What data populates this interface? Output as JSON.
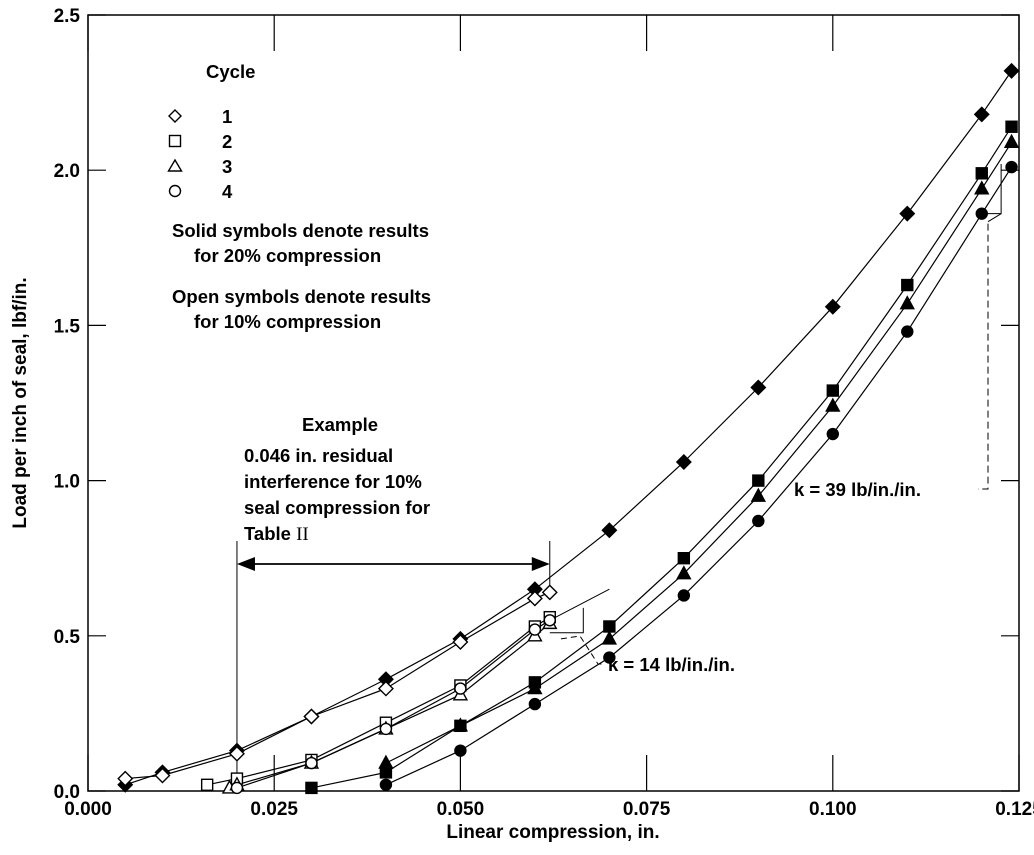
{
  "chart_data": {
    "type": "scatter",
    "xlabel": "Linear compression, in.",
    "ylabel": "Load per inch of seal, lbf/in.",
    "xlim": [
      0.0,
      0.125
    ],
    "ylim": [
      0.0,
      2.5
    ],
    "x_ticks": [
      "0.000",
      "0.025",
      "0.050",
      "0.075",
      "0.100",
      "0.125"
    ],
    "y_ticks": [
      "0.0",
      "0.5",
      "1.0",
      "1.5",
      "2.0",
      "2.5"
    ],
    "grid": false,
    "legend": {
      "title": "Cycle",
      "placement": "top-left",
      "entries": [
        {
          "label": "1",
          "marker": "diamond"
        },
        {
          "label": "2",
          "marker": "square"
        },
        {
          "label": "3",
          "marker": "triangle"
        },
        {
          "label": "4",
          "marker": "circle"
        }
      ]
    },
    "notes": [
      "Solid symbols denote results",
      "for 20% compression",
      "Open symbols denote results",
      "for 10% compression"
    ],
    "example_annotation": {
      "heading": "Example",
      "lines": [
        "0.046 in. residual",
        "interference for 10%",
        "seal compression for",
        "Table "
      ],
      "roman": "II",
      "span_x": [
        0.02,
        0.062
      ]
    },
    "stiffness_labels": [
      "k = 14 lb/in./in.",
      "k = 39 lb/in./in."
    ],
    "series": [
      {
        "cycle": "1",
        "compression": "20%",
        "marker": "diamond",
        "filled": true,
        "x": [
          0.005,
          0.01,
          0.02,
          0.03,
          0.04,
          0.05,
          0.06,
          0.07,
          0.08,
          0.09,
          0.1,
          0.11,
          0.12,
          0.124
        ],
        "y": [
          0.02,
          0.06,
          0.13,
          0.24,
          0.36,
          0.49,
          0.65,
          0.84,
          1.06,
          1.3,
          1.56,
          1.86,
          2.18,
          2.32
        ]
      },
      {
        "cycle": "2",
        "compression": "20%",
        "marker": "square",
        "filled": true,
        "x": [
          0.03,
          0.04,
          0.05,
          0.06,
          0.07,
          0.08,
          0.09,
          0.1,
          0.11,
          0.12,
          0.124
        ],
        "y": [
          0.01,
          0.06,
          0.21,
          0.35,
          0.53,
          0.75,
          1.0,
          1.29,
          1.63,
          1.99,
          2.14
        ]
      },
      {
        "cycle": "3",
        "compression": "20%",
        "marker": "triangle",
        "filled": true,
        "x": [
          0.04,
          0.05,
          0.06,
          0.07,
          0.08,
          0.09,
          0.1,
          0.11,
          0.12,
          0.124
        ],
        "y": [
          0.09,
          0.21,
          0.33,
          0.49,
          0.7,
          0.95,
          1.24,
          1.57,
          1.94,
          2.09
        ]
      },
      {
        "cycle": "4",
        "compression": "20%",
        "marker": "circle",
        "filled": true,
        "x": [
          0.04,
          0.05,
          0.06,
          0.07,
          0.08,
          0.09,
          0.1,
          0.11,
          0.12,
          0.124
        ],
        "y": [
          0.02,
          0.13,
          0.28,
          0.43,
          0.63,
          0.87,
          1.15,
          1.48,
          1.86,
          2.01
        ]
      },
      {
        "cycle": "1",
        "compression": "10%",
        "marker": "diamond",
        "filled": false,
        "x": [
          0.005,
          0.01,
          0.02,
          0.03,
          0.04,
          0.05,
          0.06,
          0.062
        ],
        "y": [
          0.04,
          0.05,
          0.12,
          0.24,
          0.33,
          0.48,
          0.62,
          0.64
        ]
      },
      {
        "cycle": "2",
        "compression": "10%",
        "marker": "square",
        "filled": false,
        "x": [
          0.016,
          0.02,
          0.03,
          0.04,
          0.05,
          0.06,
          0.062
        ],
        "y": [
          0.02,
          0.04,
          0.1,
          0.22,
          0.34,
          0.53,
          0.56
        ]
      },
      {
        "cycle": "3",
        "compression": "10%",
        "marker": "triangle",
        "filled": false,
        "x": [
          0.019,
          0.02,
          0.03,
          0.04,
          0.05,
          0.06,
          0.062
        ],
        "y": [
          0.01,
          0.02,
          0.09,
          0.2,
          0.31,
          0.5,
          0.54
        ]
      },
      {
        "cycle": "4",
        "compression": "10%",
        "marker": "circle",
        "filled": false,
        "x": [
          0.02,
          0.03,
          0.04,
          0.05,
          0.06,
          0.062
        ],
        "y": [
          0.01,
          0.09,
          0.2,
          0.33,
          0.52,
          0.55
        ]
      }
    ]
  }
}
